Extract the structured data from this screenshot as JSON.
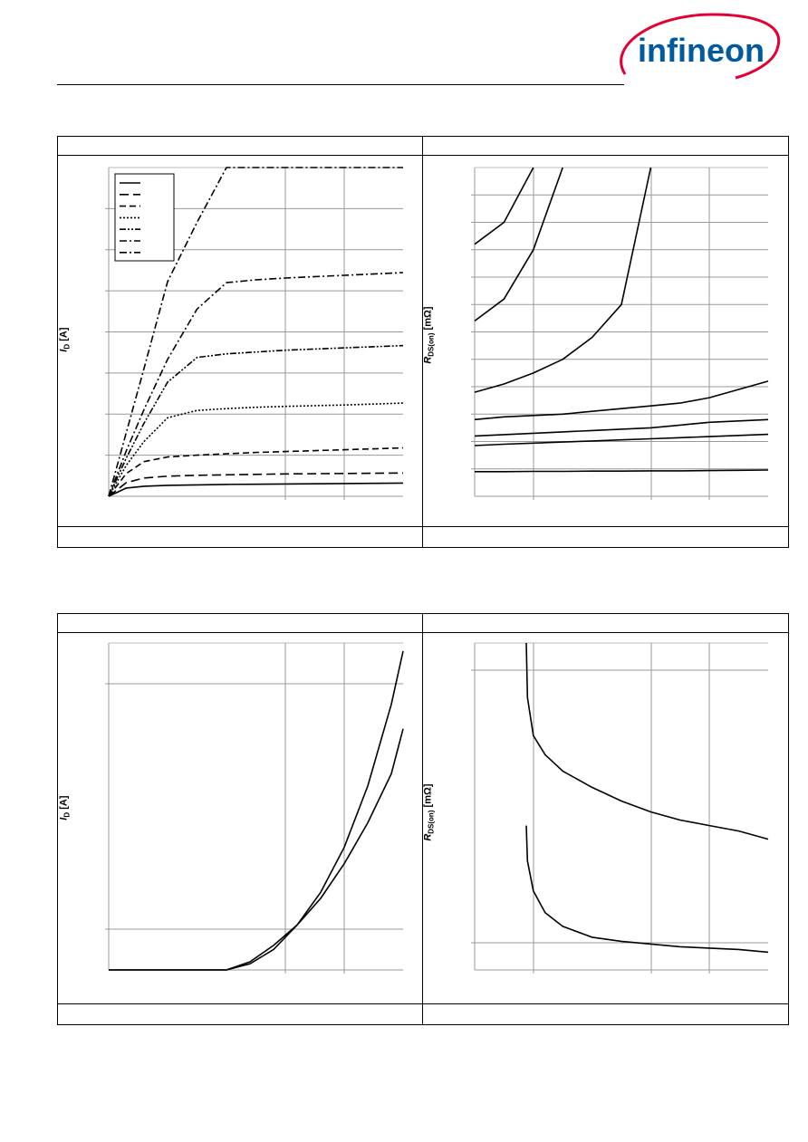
{
  "brand": {
    "name": "infineon",
    "accent": "#005aa0",
    "swoosh": "#e30034"
  },
  "chart_data": [
    {
      "type": "line",
      "ylabel": "I_D [A]",
      "ylabel_var": "I",
      "ylabel_sub": "D",
      "ylabel_unit": "[A]",
      "legend": "top-left",
      "grid": true,
      "x": [
        0,
        0.3,
        0.6,
        1,
        1.5,
        2,
        2.5,
        3,
        4,
        5
      ],
      "series": [
        {
          "style": "solid",
          "values": [
            0,
            0.9,
            1.1,
            1.2,
            1.25,
            1.3,
            1.32,
            1.35,
            1.4,
            1.45
          ]
        },
        {
          "style": "dash-long",
          "values": [
            0,
            1.5,
            2.0,
            2.2,
            2.3,
            2.35,
            2.4,
            2.45,
            2.5,
            2.55
          ]
        },
        {
          "style": "dash",
          "values": [
            0,
            2.5,
            3.8,
            4.3,
            4.5,
            4.65,
            4.8,
            4.9,
            5.1,
            5.3
          ]
        },
        {
          "style": "dot",
          "values": [
            0,
            3.4,
            6.0,
            8.6,
            9.4,
            9.6,
            9.75,
            9.85,
            10.0,
            10.2
          ]
        },
        {
          "style": "dash-dot-dot",
          "values": [
            0,
            4.2,
            8.0,
            12.5,
            15.2,
            15.6,
            15.8,
            16.0,
            16.25,
            16.5
          ]
        },
        {
          "style": "dash-dot",
          "values": [
            0,
            5.0,
            9.5,
            15.0,
            20.5,
            23.4,
            23.7,
            23.9,
            24.2,
            24.5
          ]
        },
        {
          "style": "dash-dot",
          "values": [
            0,
            7.0,
            14.0,
            23.5,
            30.0,
            36.0,
            36.0,
            36.0,
            36.0,
            36.0
          ]
        }
      ],
      "xlim": [
        0,
        5
      ],
      "ylim": [
        0,
        36
      ]
    },
    {
      "type": "line",
      "ylabel": "R_DS(on) [mΩ]",
      "ylabel_var": "R",
      "ylabel_sub": "DS(on)",
      "ylabel_unit": "[mΩ]",
      "grid": true,
      "xlim": [
        0,
        5
      ],
      "ylim": [
        0,
        12
      ],
      "x": [
        0,
        0.5,
        1,
        1.5,
        2,
        2.5,
        3,
        3.5,
        4,
        4.5,
        5
      ],
      "series": [
        {
          "style": "solid",
          "values": [
            0.9,
            0.9,
            0.91,
            0.91,
            0.92,
            0.92,
            0.93,
            0.93,
            0.94,
            0.95,
            0.96
          ]
        },
        {
          "style": "solid",
          "values": [
            1.85,
            1.9,
            1.94,
            1.98,
            2.02,
            2.06,
            2.1,
            2.14,
            2.18,
            2.22,
            2.26
          ]
        },
        {
          "style": "solid",
          "values": [
            2.2,
            2.25,
            2.3,
            2.35,
            2.4,
            2.45,
            2.5,
            2.6,
            2.7,
            2.75,
            2.8
          ]
        },
        {
          "style": "solid",
          "values": [
            2.8,
            2.9,
            2.95,
            3.0,
            3.1,
            3.2,
            3.3,
            3.4,
            3.6,
            3.9,
            4.2
          ]
        },
        {
          "style": "solid",
          "values": [
            3.8,
            4.1,
            4.5,
            5.0,
            5.8,
            7.0,
            12.0,
            null,
            null,
            null,
            null
          ]
        },
        {
          "style": "solid",
          "values": [
            6.4,
            7.2,
            9.0,
            12.0,
            null,
            null,
            null,
            null,
            null,
            null,
            null
          ]
        },
        {
          "style": "solid",
          "values": [
            9.2,
            10.0,
            12.0,
            null,
            null,
            null,
            null,
            null,
            null,
            null,
            null
          ]
        }
      ]
    },
    {
      "type": "line",
      "ylabel": "I_D [A]",
      "ylabel_var": "I",
      "ylabel_sub": "D",
      "ylabel_unit": "[A]",
      "grid": true,
      "xlim": [
        0,
        5
      ],
      "ylim": [
        0,
        8
      ],
      "x": [
        0,
        1,
        2,
        2.4,
        2.8,
        3.2,
        3.6,
        4.0,
        4.4,
        4.8,
        5.0
      ],
      "series": [
        {
          "style": "solid",
          "values": [
            0,
            0,
            0,
            0.15,
            0.5,
            1.1,
            1.9,
            3.0,
            4.5,
            6.5,
            7.8
          ]
        },
        {
          "style": "solid",
          "values": [
            0,
            0,
            0,
            0.2,
            0.6,
            1.1,
            1.75,
            2.6,
            3.6,
            4.8,
            5.9
          ]
        }
      ]
    },
    {
      "type": "line",
      "ylabel": "R_DS(on) [mΩ]",
      "ylabel_var": "R",
      "ylabel_sub": "DS(on)",
      "ylabel_unit": "[mΩ]",
      "grid": true,
      "xlim": [
        0,
        5
      ],
      "ylim": [
        0,
        12
      ],
      "x": [
        0.88,
        0.9,
        1.0,
        1.2,
        1.5,
        2,
        2.5,
        3,
        3.5,
        4,
        4.5,
        5
      ],
      "series": [
        {
          "style": "solid",
          "values": [
            12,
            10.0,
            8.6,
            7.9,
            7.3,
            6.7,
            6.2,
            5.8,
            5.5,
            5.3,
            5.1,
            4.8
          ]
        },
        {
          "style": "solid",
          "values": [
            5.3,
            4.0,
            2.9,
            2.1,
            1.6,
            1.2,
            1.05,
            0.95,
            0.85,
            0.8,
            0.75,
            0.65
          ]
        }
      ]
    }
  ]
}
